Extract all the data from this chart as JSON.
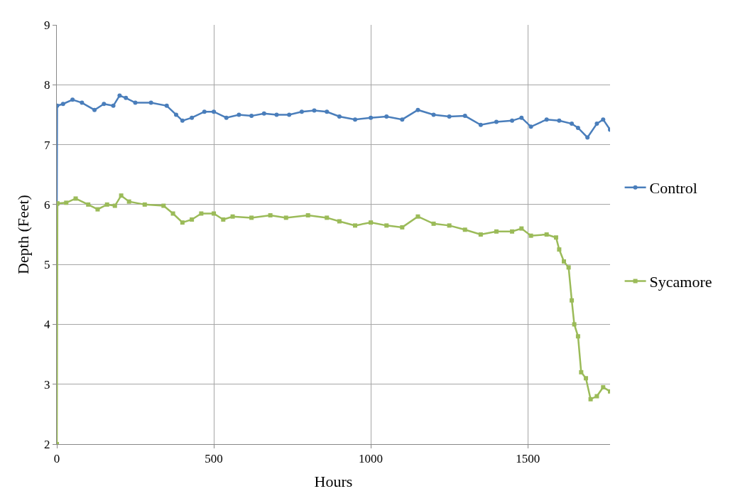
{
  "chart_data": {
    "type": "line",
    "xlabel": "Hours",
    "ylabel": "Depth (Feet)",
    "xlim": [
      0,
      1762
    ],
    "xticks": [
      0,
      500,
      1000,
      1500
    ],
    "ylim": [
      2,
      9
    ],
    "yticks": [
      2,
      3,
      4,
      5,
      6,
      7,
      8,
      9
    ],
    "grid": true,
    "legend": "right",
    "series": [
      {
        "name": "Control",
        "color": "#4a7ebb",
        "marker": "circle",
        "x": [
          0,
          1,
          20,
          50,
          80,
          120,
          150,
          180,
          200,
          220,
          250,
          300,
          350,
          380,
          400,
          430,
          470,
          500,
          540,
          580,
          620,
          660,
          700,
          740,
          780,
          820,
          860,
          900,
          950,
          1000,
          1050,
          1100,
          1150,
          1200,
          1250,
          1300,
          1350,
          1400,
          1450,
          1480,
          1510,
          1560,
          1600,
          1640,
          1660,
          1690,
          1720,
          1740,
          1762
        ],
        "values": [
          6.0,
          7.65,
          7.68,
          7.75,
          7.7,
          7.58,
          7.68,
          7.65,
          7.82,
          7.78,
          7.7,
          7.7,
          7.65,
          7.5,
          7.4,
          7.45,
          7.55,
          7.55,
          7.45,
          7.5,
          7.48,
          7.52,
          7.5,
          7.5,
          7.55,
          7.57,
          7.55,
          7.47,
          7.42,
          7.45,
          7.47,
          7.42,
          7.58,
          7.5,
          7.47,
          7.48,
          7.33,
          7.38,
          7.4,
          7.45,
          7.3,
          7.42,
          7.4,
          7.35,
          7.28,
          7.12,
          7.35,
          7.42,
          7.25
        ]
      },
      {
        "name": "Sycamore",
        "color": "#9bbb59",
        "marker": "square",
        "x": [
          0,
          2,
          30,
          60,
          100,
          130,
          160,
          185,
          205,
          230,
          280,
          340,
          370,
          400,
          430,
          460,
          500,
          530,
          560,
          620,
          680,
          730,
          800,
          860,
          900,
          950,
          1000,
          1050,
          1100,
          1150,
          1200,
          1250,
          1300,
          1350,
          1400,
          1450,
          1480,
          1510,
          1560,
          1590,
          1600,
          1615,
          1630,
          1640,
          1648,
          1660,
          1670,
          1685,
          1700,
          1720,
          1740,
          1762
        ],
        "values": [
          2,
          6.02,
          6.03,
          6.1,
          6.0,
          5.92,
          6.0,
          5.98,
          6.15,
          6.05,
          6.0,
          5.98,
          5.85,
          5.7,
          5.75,
          5.85,
          5.85,
          5.75,
          5.8,
          5.78,
          5.82,
          5.78,
          5.82,
          5.78,
          5.72,
          5.65,
          5.7,
          5.65,
          5.62,
          5.8,
          5.68,
          5.65,
          5.58,
          5.5,
          5.55,
          5.55,
          5.6,
          5.48,
          5.5,
          5.45,
          5.25,
          5.05,
          4.95,
          4.4,
          4.0,
          3.8,
          3.2,
          3.1,
          2.75,
          2.8,
          2.95,
          2.88
        ]
      }
    ]
  }
}
